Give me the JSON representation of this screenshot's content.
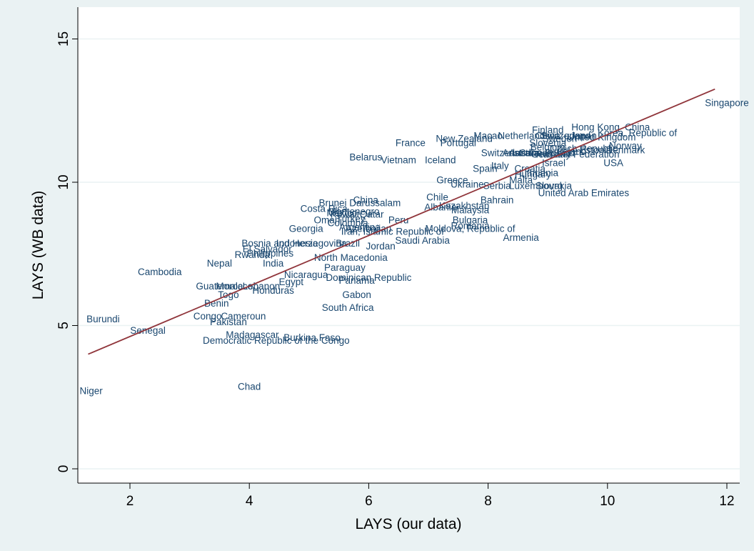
{
  "chart_data": {
    "type": "scatter",
    "xlabel": "LAYS (our data)",
    "ylabel": "LAYS (WB data)",
    "xlim": [
      1.1,
      12.2
    ],
    "ylim": [
      -0.6,
      15.3
    ],
    "xticks": [
      "2",
      "4",
      "6",
      "8",
      "10",
      "12"
    ],
    "yticks": [
      "0",
      "5",
      "10",
      "15"
    ],
    "grid": "horizontal",
    "fit_line": {
      "x1": 1.3,
      "y1": 4.0,
      "x2": 11.8,
      "y2": 13.25,
      "color": "#90353b"
    },
    "colors": {
      "plot_bg": "#ffffff",
      "outer_bg": "#eaf2f3",
      "label": "#1a476f",
      "grid": "#eaf2f3"
    },
    "points": [
      {
        "label": "Singapore",
        "x": 12.0,
        "y": 12.75
      },
      {
        "label": "Hong Kong",
        "x": 9.8,
        "y": 11.9
      },
      {
        "label": "China",
        "x": 10.5,
        "y": 11.9
      },
      {
        "label": "Finland",
        "x": 9.0,
        "y": 11.8
      },
      {
        "label": "Korea, Republic of",
        "x": 10.5,
        "y": 11.7
      },
      {
        "label": "Macao",
        "x": 8.0,
        "y": 11.6
      },
      {
        "label": "Netherlands",
        "x": 8.6,
        "y": 11.6
      },
      {
        "label": "China",
        "x": 9.0,
        "y": 11.6
      },
      {
        "label": "Switzerland",
        "x": 9.3,
        "y": 11.6
      },
      {
        "label": "Japan",
        "x": 9.6,
        "y": 11.6
      },
      {
        "label": "United Kingdom",
        "x": 9.9,
        "y": 11.55
      },
      {
        "label": "New Zealand",
        "x": 7.6,
        "y": 11.5
      },
      {
        "label": "Sweden",
        "x": 9.2,
        "y": 11.5
      },
      {
        "label": "Slovenia",
        "x": 9.0,
        "y": 11.35
      },
      {
        "label": "Portugal",
        "x": 7.5,
        "y": 11.35
      },
      {
        "label": "France",
        "x": 6.7,
        "y": 11.35
      },
      {
        "label": "Norway",
        "x": 10.3,
        "y": 11.25
      },
      {
        "label": "Belgium",
        "x": 9.0,
        "y": 11.2
      },
      {
        "label": "Czech Republic",
        "x": 9.6,
        "y": 11.15
      },
      {
        "label": "Estonia",
        "x": 9.8,
        "y": 11.1
      },
      {
        "label": "Denmark",
        "x": 10.3,
        "y": 11.1
      },
      {
        "label": "Switzerland",
        "x": 8.3,
        "y": 11.0
      },
      {
        "label": "Canada",
        "x": 8.8,
        "y": 11.0
      },
      {
        "label": "Australia",
        "x": 8.55,
        "y": 11.0
      },
      {
        "label": "Austria",
        "x": 8.6,
        "y": 11.0
      },
      {
        "label": "Germany",
        "x": 9.05,
        "y": 10.95
      },
      {
        "label": "Russian Federation",
        "x": 9.5,
        "y": 10.95
      },
      {
        "label": "Poland",
        "x": 9.2,
        "y": 11.0
      },
      {
        "label": "Ireland",
        "x": 9.4,
        "y": 11.05
      },
      {
        "label": "Belarus",
        "x": 5.95,
        "y": 10.85
      },
      {
        "label": "Vietnam",
        "x": 6.5,
        "y": 10.75
      },
      {
        "label": "Iceland",
        "x": 7.2,
        "y": 10.75
      },
      {
        "label": "USA",
        "x": 10.1,
        "y": 10.65
      },
      {
        "label": "Israel",
        "x": 9.1,
        "y": 10.65
      },
      {
        "label": "Italy",
        "x": 8.2,
        "y": 10.55
      },
      {
        "label": "Croatia",
        "x": 8.7,
        "y": 10.45
      },
      {
        "label": "Spain",
        "x": 7.95,
        "y": 10.45
      },
      {
        "label": "Lithuania",
        "x": 8.85,
        "y": 10.3
      },
      {
        "label": "Hungary",
        "x": 8.75,
        "y": 10.25
      },
      {
        "label": "Malta",
        "x": 8.55,
        "y": 10.05
      },
      {
        "label": "Greece",
        "x": 7.4,
        "y": 10.05
      },
      {
        "label": "Ukraine",
        "x": 7.65,
        "y": 9.9
      },
      {
        "label": "Serbia",
        "x": 8.15,
        "y": 9.85
      },
      {
        "label": "Luxembourg",
        "x": 8.8,
        "y": 9.85
      },
      {
        "label": "Slovakia",
        "x": 9.1,
        "y": 9.85
      },
      {
        "label": "United Arab Emirates",
        "x": 9.6,
        "y": 9.6
      },
      {
        "label": "Chile",
        "x": 7.15,
        "y": 9.45
      },
      {
        "label": "China",
        "x": 5.95,
        "y": 9.35
      },
      {
        "label": "Brunei Darussalam",
        "x": 5.85,
        "y": 9.25
      },
      {
        "label": "Bahrain",
        "x": 8.15,
        "y": 9.35
      },
      {
        "label": "Kazakhstan",
        "x": 7.6,
        "y": 9.15
      },
      {
        "label": "Albania",
        "x": 7.2,
        "y": 9.1
      },
      {
        "label": "Malaysia",
        "x": 7.7,
        "y": 9.0
      },
      {
        "label": "Costa Rica",
        "x": 5.25,
        "y": 9.05
      },
      {
        "label": "Montenegro",
        "x": 5.75,
        "y": 8.95
      },
      {
        "label": "Mexico",
        "x": 5.55,
        "y": 8.9
      },
      {
        "label": "Qatar",
        "x": 6.05,
        "y": 8.85
      },
      {
        "label": "Kuwait",
        "x": 5.6,
        "y": 8.85
      },
      {
        "label": "Peru",
        "x": 6.5,
        "y": 8.65
      },
      {
        "label": "Oman",
        "x": 5.3,
        "y": 8.65
      },
      {
        "label": "Turkey",
        "x": 5.7,
        "y": 8.7
      },
      {
        "label": "Bulgaria",
        "x": 7.7,
        "y": 8.65
      },
      {
        "label": "Colombia",
        "x": 5.65,
        "y": 8.55
      },
      {
        "label": "Romania",
        "x": 7.7,
        "y": 8.45
      },
      {
        "label": "Georgia",
        "x": 4.95,
        "y": 8.35
      },
      {
        "label": "Argentina",
        "x": 5.85,
        "y": 8.4
      },
      {
        "label": "Azerbaijan",
        "x": 6.0,
        "y": 8.35
      },
      {
        "label": "Moldova, Republic of",
        "x": 7.7,
        "y": 8.35
      },
      {
        "label": "Iran, Islamic Republic of",
        "x": 6.4,
        "y": 8.25
      },
      {
        "label": "Armenia",
        "x": 8.55,
        "y": 8.05
      },
      {
        "label": "Saudi Arabia",
        "x": 6.9,
        "y": 7.95
      },
      {
        "label": "Brazil",
        "x": 5.65,
        "y": 7.85
      },
      {
        "label": "Bosnia and Herzegovina",
        "x": 4.75,
        "y": 7.85
      },
      {
        "label": "Indonesia",
        "x": 4.8,
        "y": 7.85
      },
      {
        "label": "Jordan",
        "x": 6.2,
        "y": 7.75
      },
      {
        "label": "El Salvador",
        "x": 4.3,
        "y": 7.65
      },
      {
        "label": "Philippines",
        "x": 4.35,
        "y": 7.5
      },
      {
        "label": "Rwanda",
        "x": 4.05,
        "y": 7.45
      },
      {
        "label": "North Macedonia",
        "x": 5.7,
        "y": 7.35
      },
      {
        "label": "Nepal",
        "x": 3.5,
        "y": 7.15
      },
      {
        "label": "India",
        "x": 4.4,
        "y": 7.15
      },
      {
        "label": "Paraguay",
        "x": 5.6,
        "y": 7.0
      },
      {
        "label": "Cambodia",
        "x": 2.5,
        "y": 6.85
      },
      {
        "label": "Nicaragua",
        "x": 4.95,
        "y": 6.75
      },
      {
        "label": "Dominican Republic",
        "x": 6.0,
        "y": 6.65
      },
      {
        "label": "Panama",
        "x": 5.8,
        "y": 6.55
      },
      {
        "label": "Egypt",
        "x": 4.7,
        "y": 6.5
      },
      {
        "label": "Guatemala",
        "x": 3.5,
        "y": 6.35
      },
      {
        "label": "Morocco",
        "x": 3.75,
        "y": 6.35
      },
      {
        "label": "Lebanon",
        "x": 4.2,
        "y": 6.35
      },
      {
        "label": "Honduras",
        "x": 4.4,
        "y": 6.2
      },
      {
        "label": "Togo",
        "x": 3.65,
        "y": 6.05
      },
      {
        "label": "Gabon",
        "x": 5.8,
        "y": 6.05
      },
      {
        "label": "Benin",
        "x": 3.45,
        "y": 5.75
      },
      {
        "label": "South Africa",
        "x": 5.65,
        "y": 5.6
      },
      {
        "label": "Congo",
        "x": 3.3,
        "y": 5.3
      },
      {
        "label": "Cameroun",
        "x": 3.9,
        "y": 5.3
      },
      {
        "label": "Burundi",
        "x": 1.55,
        "y": 5.2
      },
      {
        "label": "Pakistan",
        "x": 3.65,
        "y": 5.1
      },
      {
        "label": "Senegal",
        "x": 2.3,
        "y": 4.8
      },
      {
        "label": "Madagascar",
        "x": 4.05,
        "y": 4.65
      },
      {
        "label": "Burkina Faso",
        "x": 5.05,
        "y": 4.55
      },
      {
        "label": "Democratic Republic of the Congo",
        "x": 4.45,
        "y": 4.45
      },
      {
        "label": "Chad",
        "x": 4.0,
        "y": 2.85
      },
      {
        "label": "Niger",
        "x": 1.35,
        "y": 2.7
      }
    ]
  }
}
